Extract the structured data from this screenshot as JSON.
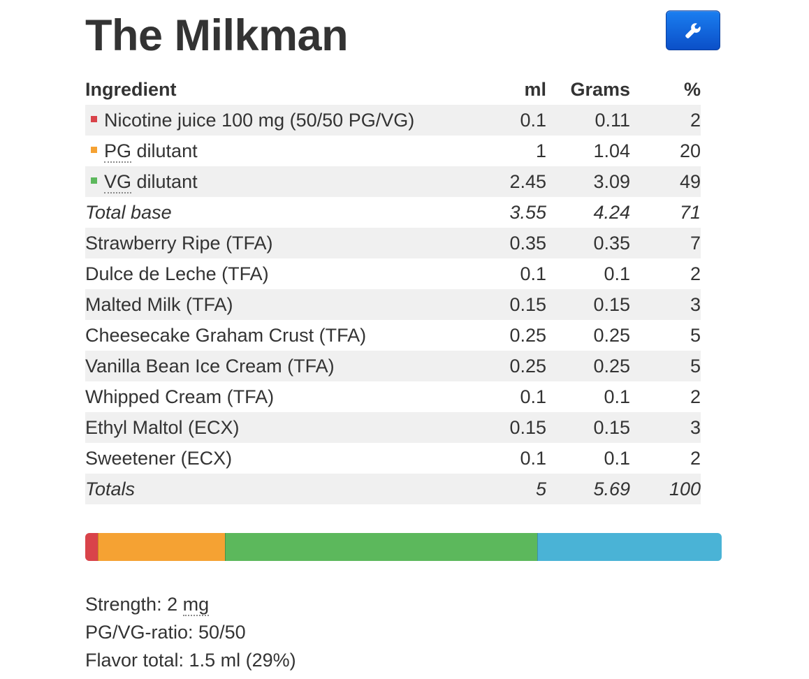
{
  "title": "The Milkman",
  "toolbar": {
    "tools_icon": "wrench-icon"
  },
  "table": {
    "headers": {
      "ingredient": "Ingredient",
      "ml": "ml",
      "grams": "Grams",
      "percent": "%"
    },
    "rows": [
      {
        "name": "Nicotine juice 100 mg (50/50 PG/VG)",
        "ml": "0.1",
        "grams": "0.11",
        "percent": "2",
        "swatch": "#d9434a"
      },
      {
        "name_abbr": "PG",
        "name_rest": " dilutant",
        "ml": "1",
        "grams": "1.04",
        "percent": "20",
        "swatch": "#f5a233"
      },
      {
        "name_abbr": "VG",
        "name_rest": " dilutant",
        "ml": "2.45",
        "grams": "3.09",
        "percent": "49",
        "swatch": "#5cb85c"
      },
      {
        "name": "Total base",
        "ml": "3.55",
        "grams": "4.24",
        "percent": "71"
      },
      {
        "name": "Strawberry Ripe (TFA)",
        "ml": "0.35",
        "grams": "0.35",
        "percent": "7"
      },
      {
        "name": "Dulce de Leche (TFA)",
        "ml": "0.1",
        "grams": "0.1",
        "percent": "2"
      },
      {
        "name": "Malted Milk (TFA)",
        "ml": "0.15",
        "grams": "0.15",
        "percent": "3"
      },
      {
        "name": "Cheesecake Graham Crust (TFA)",
        "ml": "0.25",
        "grams": "0.25",
        "percent": "5"
      },
      {
        "name": "Vanilla Bean Ice Cream (TFA)",
        "ml": "0.25",
        "grams": "0.25",
        "percent": "5"
      },
      {
        "name": "Whipped Cream (TFA)",
        "ml": "0.1",
        "grams": "0.1",
        "percent": "2"
      },
      {
        "name": "Ethyl Maltol (ECX)",
        "ml": "0.15",
        "grams": "0.15",
        "percent": "3"
      },
      {
        "name": "Sweetener (ECX)",
        "ml": "0.1",
        "grams": "0.1",
        "percent": "2"
      },
      {
        "name": "Totals",
        "ml": "5",
        "grams": "5.69",
        "percent": "100"
      }
    ]
  },
  "ratio_bar": {
    "segments": [
      {
        "name": "nicotine",
        "percent": 2,
        "color": "#d9434a"
      },
      {
        "name": "pg",
        "percent": 20,
        "color": "#f5a233"
      },
      {
        "name": "vg",
        "percent": 49,
        "color": "#5cb85c"
      },
      {
        "name": "flavor",
        "percent": 29,
        "color": "#4ab3d6"
      }
    ]
  },
  "summary": {
    "strength_label": "Strength: 2 ",
    "strength_unit": "mg",
    "pgvg": "PG/VG-ratio: 50/50",
    "flavor_total": "Flavor total: 1.5 ml (29%)"
  }
}
